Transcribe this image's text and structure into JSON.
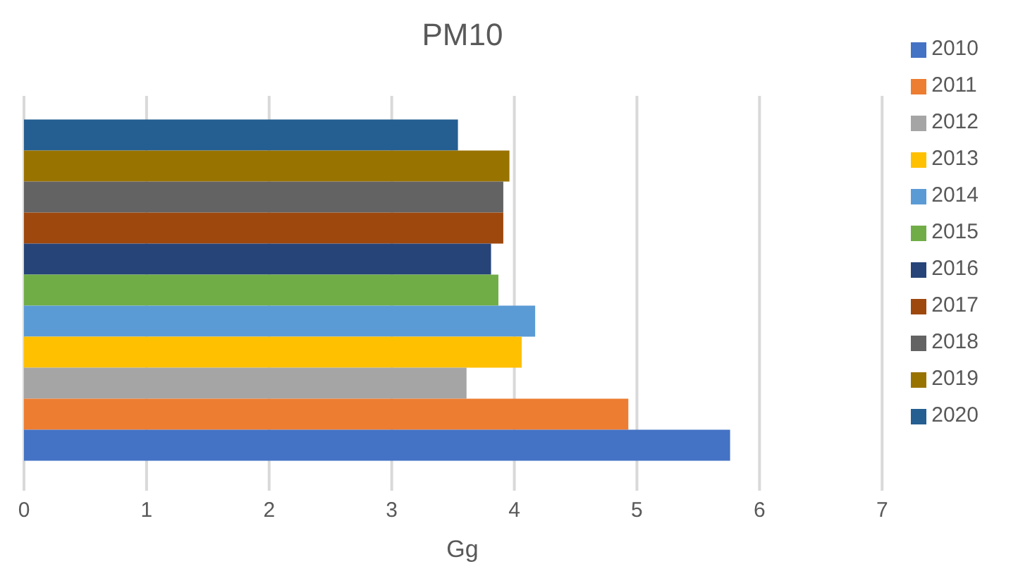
{
  "chart_data": {
    "type": "bar",
    "title": "PM10",
    "xlabel": "Gg",
    "orientation": "horizontal",
    "categories": [
      null
    ],
    "series": [
      {
        "name": "2020",
        "color": "#255e91",
        "values": [
          3.54
        ]
      },
      {
        "name": "2019",
        "color": "#997300",
        "values": [
          3.96
        ]
      },
      {
        "name": "2018",
        "color": "#636363",
        "values": [
          3.91
        ]
      },
      {
        "name": "2017",
        "color": "#9e480e",
        "values": [
          3.91
        ]
      },
      {
        "name": "2016",
        "color": "#264478",
        "values": [
          3.81
        ]
      },
      {
        "name": "2015",
        "color": "#70ad47",
        "values": [
          3.87
        ]
      },
      {
        "name": "2014",
        "color": "#5b9bd5",
        "values": [
          4.17
        ]
      },
      {
        "name": "2013",
        "color": "#ffc000",
        "values": [
          4.06
        ]
      },
      {
        "name": "2012",
        "color": "#a5a5a5",
        "values": [
          3.61
        ]
      },
      {
        "name": "2011",
        "color": "#ed7d31",
        "values": [
          4.93
        ]
      },
      {
        "name": "2010",
        "color": "#4472c4",
        "values": [
          5.76
        ]
      }
    ],
    "xlim": [
      0,
      7
    ],
    "xticks": [
      0,
      1,
      2,
      3,
      4,
      5,
      6,
      7
    ],
    "grid": "x",
    "legend": "right"
  }
}
